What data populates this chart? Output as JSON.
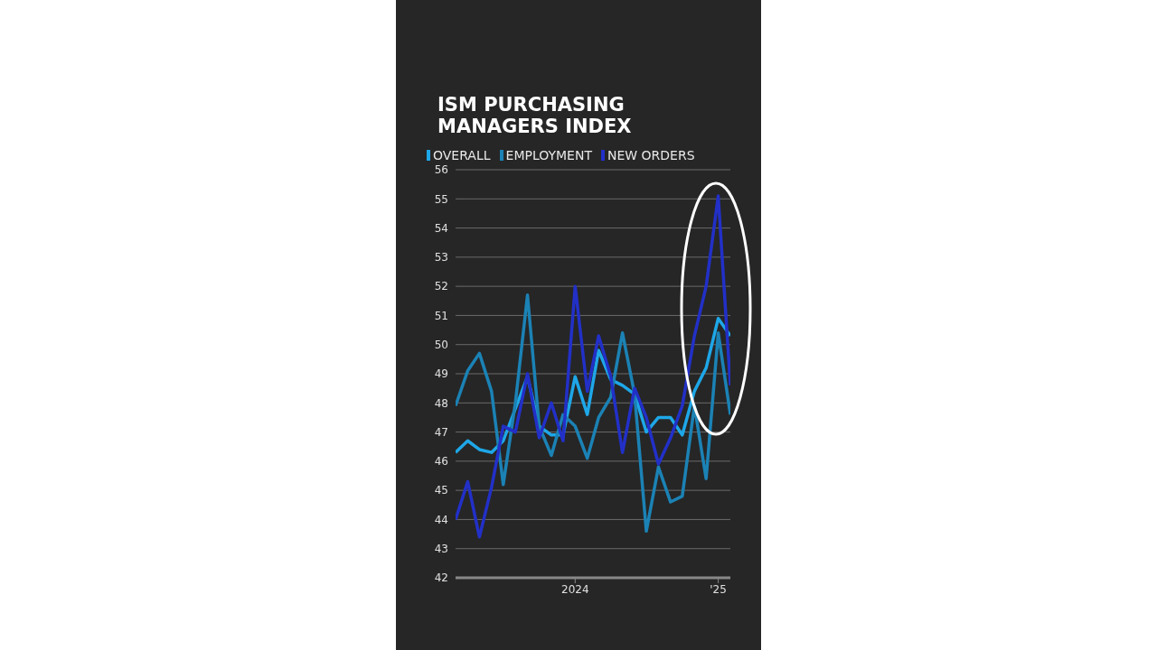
{
  "chart_data": {
    "type": "line",
    "title": "ISM PURCHASING MANAGERS INDEX",
    "x": [
      "2023-03",
      "2023-04",
      "2023-05",
      "2023-06",
      "2023-07",
      "2023-08",
      "2023-09",
      "2023-10",
      "2023-11",
      "2023-12",
      "2024-01",
      "2024-02",
      "2024-03",
      "2024-04",
      "2024-05",
      "2024-06",
      "2024-07",
      "2024-08",
      "2024-09",
      "2024-10",
      "2024-11",
      "2024-12",
      "2025-01",
      "2025-02"
    ],
    "series": [
      {
        "name": "OVERALL",
        "color": "#1ea7e8",
        "values": [
          46.3,
          46.7,
          46.4,
          46.3,
          46.7,
          47.8,
          48.9,
          47.2,
          46.9,
          46.9,
          48.9,
          47.6,
          49.8,
          48.8,
          48.6,
          48.3,
          47.0,
          47.5,
          47.5,
          46.9,
          48.4,
          49.2,
          50.9,
          50.3
        ]
      },
      {
        "name": "EMPLOYMENT",
        "color": "#1b82b5",
        "values": [
          47.9,
          49.1,
          49.7,
          48.4,
          45.2,
          48.0,
          51.7,
          47.2,
          46.2,
          47.6,
          47.2,
          46.1,
          47.5,
          48.2,
          50.4,
          48.3,
          43.6,
          45.8,
          44.6,
          44.8,
          47.9,
          45.4,
          50.4,
          47.6
        ]
      },
      {
        "name": "NEW ORDERS",
        "color": "#2230c8",
        "values": [
          44.0,
          45.3,
          43.4,
          45.1,
          47.2,
          47.0,
          49.0,
          46.8,
          48.0,
          46.7,
          52.0,
          48.4,
          50.3,
          48.9,
          46.3,
          48.5,
          47.5,
          45.9,
          46.8,
          47.9,
          50.3,
          52.0,
          55.1,
          48.6
        ]
      }
    ],
    "xlim": [
      "2023-03",
      "2025-02"
    ],
    "xticks": [
      {
        "value": "2024-01",
        "label": "2024"
      },
      {
        "value": "2025-01",
        "label": "'25"
      }
    ],
    "ylim": [
      42,
      56
    ],
    "yticks": [
      42,
      43,
      44,
      45,
      46,
      47,
      48,
      49,
      50,
      51,
      52,
      53,
      54,
      55,
      56
    ],
    "grid": "y",
    "legend": "top left",
    "marker": "none",
    "line_style": "solid"
  }
}
